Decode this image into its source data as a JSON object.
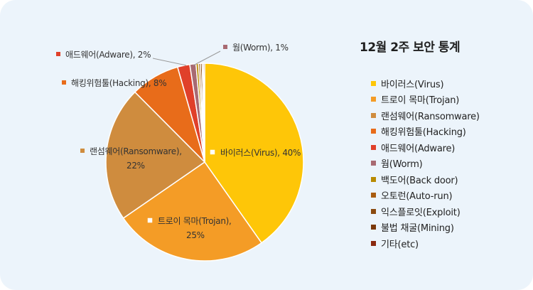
{
  "chart_data": {
    "type": "pie",
    "title": "12월 2주 보안 통계",
    "legend_position": "right",
    "slices": [
      {
        "label": "바이러스(Virus)",
        "value": 40,
        "color": "#fec608"
      },
      {
        "label": "트로이 목마(Trojan)",
        "value": 25,
        "color": "#f49c26"
      },
      {
        "label": "랜섬웨어(Ransomware)",
        "value": 22,
        "color": "#cf8c3e"
      },
      {
        "label": "해킹위험툴(Hacking)",
        "value": 8,
        "color": "#e86c1a"
      },
      {
        "label": "애드웨어(Adware)",
        "value": 2,
        "color": "#e0402a"
      },
      {
        "label": "웜(Worm)",
        "value": 1,
        "color": "#a86a72"
      },
      {
        "label": "백도어(Back door)",
        "value": 0.4,
        "color": "#b88a00"
      },
      {
        "label": "오토런(Auto-run)",
        "value": 0.3,
        "color": "#a85c10"
      },
      {
        "label": "익스플로잇(Exploit)",
        "value": 0.3,
        "color": "#8a4a10"
      },
      {
        "label": "불법 채굴(Mining)",
        "value": 0.2,
        "color": "#7a3808"
      },
      {
        "label": "기타(etc)",
        "value": 0.2,
        "color": "#8a2a10"
      }
    ],
    "data_labels": [
      {
        "lines": [
          "바이러스(Virus), 40%"
        ],
        "slice": 0
      },
      {
        "lines": [
          "트로이 목마(Trojan),",
          "25%"
        ],
        "slice": 1
      },
      {
        "lines": [
          "랜섬웨어(Ransomware),",
          "22%"
        ],
        "slice": 2
      },
      {
        "lines": [
          "해킹위험툴(Hacking), 8%"
        ],
        "slice": 3
      },
      {
        "lines": [
          "애드웨어(Adware), 2%"
        ],
        "slice": 4
      },
      {
        "lines": [
          "웜(Worm), 1%"
        ],
        "slice": 5
      }
    ]
  }
}
